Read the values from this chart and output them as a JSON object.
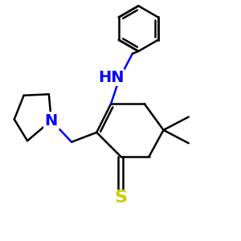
{
  "background_color": "#ffffff",
  "bond_color": "#000000",
  "n_color": "#0000ff",
  "s_color": "#cccc00",
  "line_width": 1.8,
  "figsize": [
    3.0,
    3.0
  ],
  "dpi": 100,
  "xlim": [
    0,
    10
  ],
  "ylim": [
    0,
    10
  ],
  "font_size_atom": 13,
  "font_size_hn": 14
}
